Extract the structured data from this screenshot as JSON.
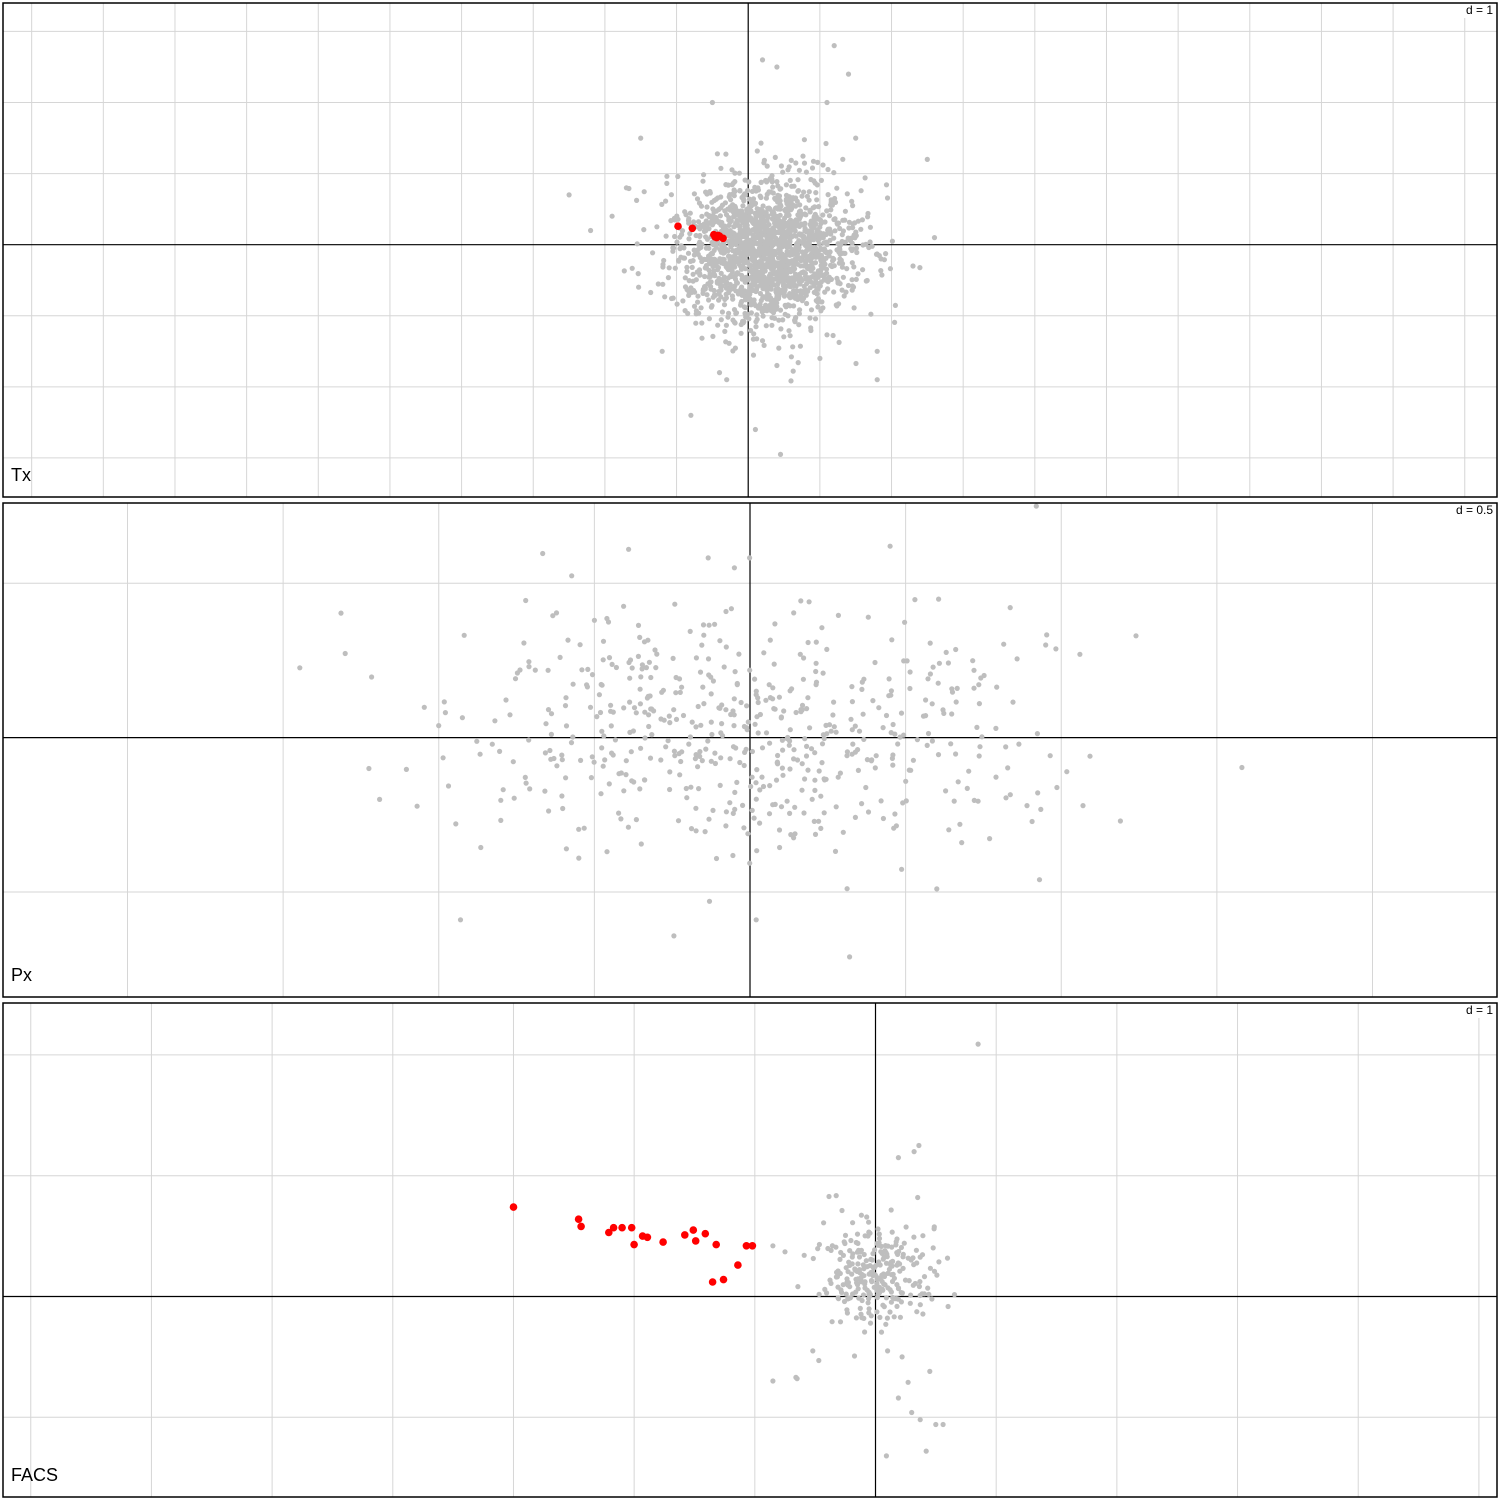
{
  "colors": {
    "background": "#ffffff",
    "grid": "#d6d6d6",
    "axis": "#000000",
    "border": "#000000",
    "point": "#bebebe",
    "highlight": "#ff0000"
  },
  "chart_data": [
    {
      "type": "scatter",
      "panel_label": "Tx",
      "scale_label": "d = 1",
      "grid_step": 1,
      "grid": true,
      "xlim": [
        -10.4,
        10.45
      ],
      "ylim": [
        -3.55,
        3.4
      ],
      "cloud": {
        "center": [
          0.25,
          -0.1
        ],
        "sd": [
          0.62,
          0.52
        ],
        "count": 1800,
        "extremes": [
          [
            -2.5,
            0.7
          ],
          [
            -2.2,
            0.2
          ],
          [
            -1.5,
            1.5
          ],
          [
            -1.7,
            0.8
          ],
          [
            -1.9,
            0.4
          ],
          [
            -0.5,
            2.0
          ],
          [
            0.2,
            2.6
          ],
          [
            0.4,
            2.5
          ],
          [
            1.2,
            2.8
          ],
          [
            1.4,
            2.4
          ],
          [
            1.1,
            2.0
          ],
          [
            1.5,
            1.5
          ],
          [
            2.5,
            1.2
          ],
          [
            2.6,
            0.1
          ],
          [
            2.3,
            -0.3
          ],
          [
            1.8,
            -1.5
          ],
          [
            1.8,
            -1.9
          ],
          [
            -0.8,
            -2.4
          ],
          [
            -0.3,
            -1.9
          ],
          [
            0.4,
            -1.7
          ],
          [
            0.1,
            -2.6
          ],
          [
            0.45,
            -2.95
          ],
          [
            -1.2,
            -1.5
          ],
          [
            -0.4,
            -1.8
          ],
          [
            1.0,
            -1.6
          ]
        ]
      },
      "highlight": [
        [
          -0.98,
          0.26
        ],
        [
          -0.78,
          0.23
        ],
        [
          -0.48,
          0.14
        ],
        [
          -0.44,
          0.1
        ],
        [
          -0.4,
          0.12
        ],
        [
          -0.35,
          0.09
        ],
        [
          -0.46,
          0.11
        ],
        [
          -0.42,
          0.13
        ]
      ]
    },
    {
      "type": "scatter",
      "panel_label": "Px",
      "scale_label": "d = 0.5",
      "grid_step": 0.5,
      "grid": true,
      "xlim": [
        -2.4,
        2.4
      ],
      "ylim": [
        -0.84,
        0.76
      ],
      "cloud": {
        "center": [
          0.0,
          0.02
        ],
        "sd": [
          0.45,
          0.2
        ],
        "count": 560,
        "extremes": [
          [
            -1.19,
            -0.2
          ],
          [
            -0.93,
            -0.59
          ],
          [
            -0.39,
            0.61
          ],
          [
            0.45,
            0.62
          ],
          [
            0.92,
            0.75
          ],
          [
            -0.05,
            0.55
          ],
          [
            1.24,
            0.33
          ],
          [
            1.06,
            0.27
          ],
          [
            0.89,
            -0.22
          ],
          [
            1.07,
            -0.22
          ],
          [
            1.19,
            -0.27
          ],
          [
            0.93,
            -0.46
          ],
          [
            0.68,
            -0.34
          ],
          [
            0.6,
            -0.49
          ],
          [
            0.32,
            -0.71
          ],
          [
            0.02,
            -0.59
          ],
          [
            -0.13,
            -0.53
          ],
          [
            -0.59,
            -0.36
          ],
          [
            -0.55,
            -0.39
          ],
          [
            -0.64,
            -0.07
          ],
          [
            -0.71,
            0.23
          ],
          [
            -0.61,
            0.26
          ],
          [
            0.62,
            0.09
          ],
          [
            0.79,
            0.03
          ],
          [
            0.95,
            0.3
          ],
          [
            0.19,
            0.44
          ],
          [
            0.38,
            0.39
          ],
          [
            -0.5,
            0.38
          ]
        ]
      },
      "highlight": []
    },
    {
      "type": "scatter",
      "panel_label": "FACS",
      "scale_label": "d = 1",
      "grid_step": 1,
      "grid": true,
      "xlim": [
        -7.23,
        5.15
      ],
      "ylim": [
        -1.66,
        2.43
      ],
      "cloud": {
        "center": [
          0.0,
          0.2
        ],
        "sd": [
          0.23,
          0.23
        ],
        "count": 280,
        "extremes": [
          [
            0.85,
            2.09
          ],
          [
            0.36,
            1.25
          ],
          [
            0.19,
            1.15
          ],
          [
            0.32,
            1.2
          ],
          [
            0.35,
            0.82
          ],
          [
            -0.43,
            0.61
          ],
          [
            -0.85,
            0.42
          ],
          [
            -0.75,
            0.37
          ],
          [
            -0.65,
            -0.68
          ],
          [
            -0.66,
            -0.67
          ],
          [
            -0.85,
            -0.7
          ],
          [
            -0.47,
            -0.53
          ],
          [
            -0.52,
            -0.45
          ],
          [
            0.1,
            -0.45
          ],
          [
            0.22,
            -0.5
          ],
          [
            0.45,
            -0.62
          ],
          [
            0.37,
            -1.02
          ],
          [
            0.5,
            -1.06
          ],
          [
            0.56,
            -1.06
          ],
          [
            0.42,
            -1.28
          ],
          [
            0.09,
            -1.32
          ],
          [
            0.19,
            -0.84
          ],
          [
            0.3,
            -0.96
          ],
          [
            0.27,
            -0.71
          ]
        ]
      },
      "highlight": [
        [
          -3.0,
          0.74
        ],
        [
          -2.46,
          0.64
        ],
        [
          -2.44,
          0.58
        ],
        [
          -2.21,
          0.53
        ],
        [
          -2.17,
          0.57
        ],
        [
          -2.1,
          0.57
        ],
        [
          -2.02,
          0.57
        ],
        [
          -2.0,
          0.43
        ],
        [
          -1.93,
          0.5
        ],
        [
          -1.89,
          0.49
        ],
        [
          -1.76,
          0.45
        ],
        [
          -1.58,
          0.51
        ],
        [
          -1.51,
          0.55
        ],
        [
          -1.49,
          0.46
        ],
        [
          -1.41,
          0.52
        ],
        [
          -1.32,
          0.43
        ],
        [
          -1.35,
          0.12
        ],
        [
          -1.26,
          0.14
        ],
        [
          -1.14,
          0.26
        ],
        [
          -1.07,
          0.42
        ],
        [
          -1.02,
          0.42
        ]
      ]
    }
  ]
}
